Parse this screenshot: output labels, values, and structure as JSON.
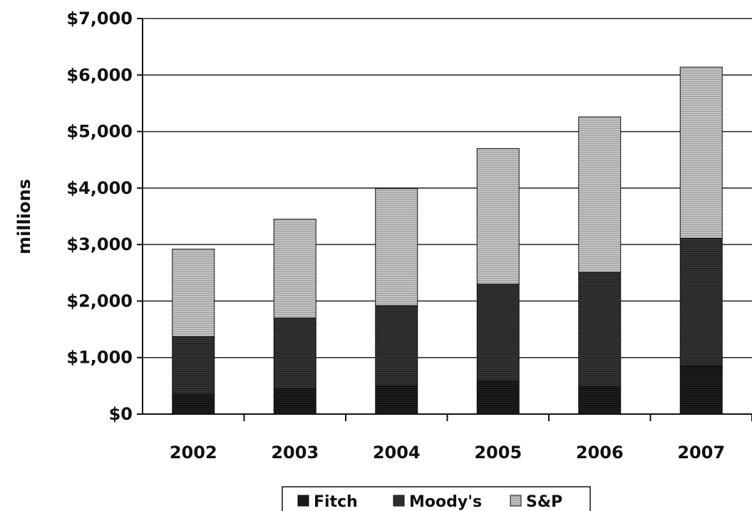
{
  "chart_data": {
    "type": "bar",
    "stacked": true,
    "categories": [
      "2002",
      "2003",
      "2004",
      "2005",
      "2006",
      "2007"
    ],
    "series": [
      {
        "name": "Fitch",
        "values": [
          350,
          450,
          500,
          580,
          490,
          850
        ],
        "color": "#151515"
      },
      {
        "name": "Moody's",
        "values": [
          1020,
          1250,
          1420,
          1720,
          2020,
          2260
        ],
        "color": "#2b2b2b"
      },
      {
        "name": "S&P",
        "values": [
          1550,
          1750,
          2070,
          2400,
          2750,
          3030
        ],
        "color": "#bdbdbd"
      }
    ],
    "ylabel": "millions",
    "xlabel": "",
    "ylim": [
      0,
      7000
    ],
    "yticks": [
      0,
      1000,
      2000,
      3000,
      4000,
      5000,
      6000,
      7000
    ],
    "ytick_labels": [
      "$0",
      "$1,000",
      "$2,000",
      "$3,000",
      "$4,000",
      "$5,000",
      "$6,000",
      "$7,000"
    ],
    "grid": "horizontal",
    "legend_position": "bottom"
  }
}
